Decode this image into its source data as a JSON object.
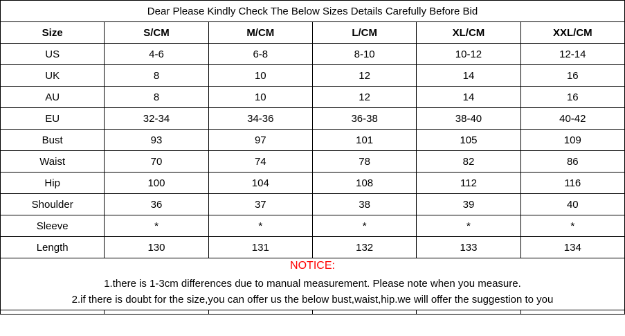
{
  "title": "Dear Please Kindly Check The Below Sizes Details Carefully Before Bid",
  "table": {
    "headers": [
      "Size",
      "S/CM",
      "M/CM",
      "L/CM",
      "XL/CM",
      "XXL/CM"
    ],
    "rows": [
      {
        "label": "US",
        "values": [
          "4-6",
          "6-8",
          "8-10",
          "10-12",
          "12-14"
        ]
      },
      {
        "label": "UK",
        "values": [
          "8",
          "10",
          "12",
          "14",
          "16"
        ]
      },
      {
        "label": "AU",
        "values": [
          "8",
          "10",
          "12",
          "14",
          "16"
        ]
      },
      {
        "label": "EU",
        "values": [
          "32-34",
          "34-36",
          "36-38",
          "38-40",
          "40-42"
        ]
      },
      {
        "label": "Bust",
        "values": [
          "93",
          "97",
          "101",
          "105",
          "109"
        ]
      },
      {
        "label": "Waist",
        "values": [
          "70",
          "74",
          "78",
          "82",
          "86"
        ]
      },
      {
        "label": "Hip",
        "values": [
          "100",
          "104",
          "108",
          "112",
          "116"
        ]
      },
      {
        "label": "Shoulder",
        "values": [
          "36",
          "37",
          "38",
          "39",
          "40"
        ]
      },
      {
        "label": "Sleeve",
        "values": [
          "*",
          "*",
          "*",
          "*",
          "*"
        ]
      },
      {
        "label": "Length",
        "values": [
          "130",
          "131",
          "132",
          "133",
          "134"
        ]
      }
    ]
  },
  "notice": {
    "heading": "NOTICE:",
    "heading_color": "#ff0000",
    "lines": [
      "1.there is 1-3cm differences due to manual measurement. Please note when you measure.",
      "2.if there is doubt for the size,you can offer us the below bust,waist,hip.we will offer the suggestion to you"
    ]
  }
}
